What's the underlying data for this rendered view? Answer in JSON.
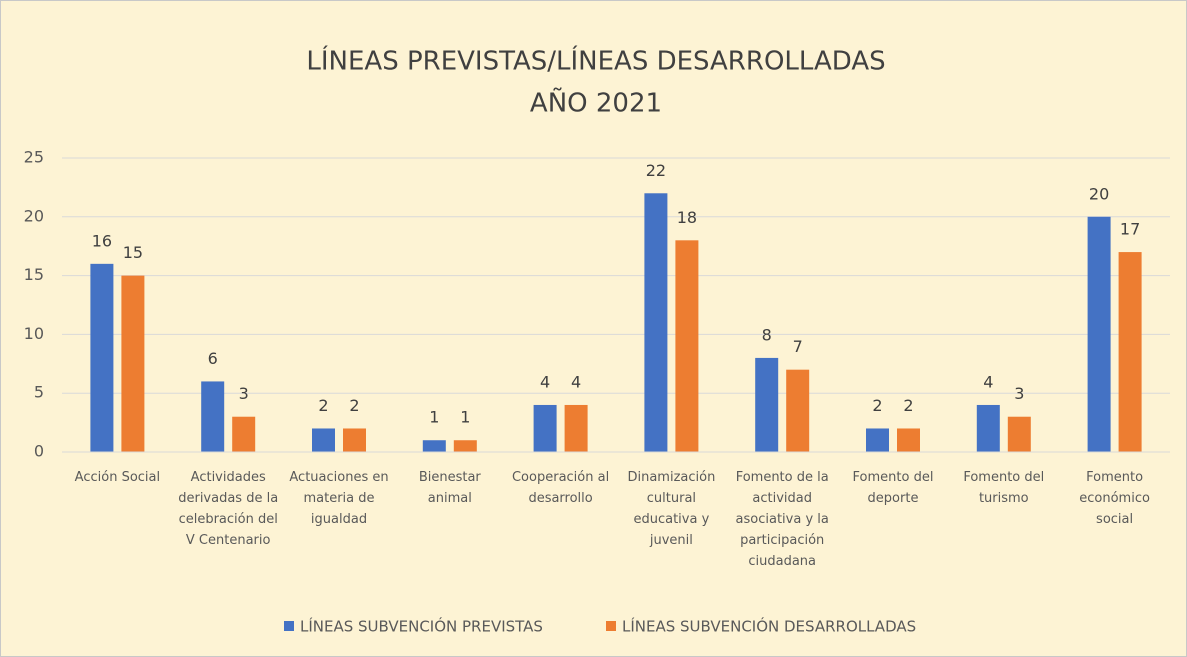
{
  "chart_data": {
    "type": "bar",
    "title": "LÍNEAS PREVISTAS/LÍNEAS DESARROLLADAS",
    "subtitle": "AÑO 2021",
    "categories": [
      "Acción Social",
      "Actividades derivadas de la celebración del V Centenario",
      "Actuaciones en materia de igualdad",
      "Bienestar animal",
      "Cooperación al desarrollo",
      "Dinamización cultural educativa y juvenil",
      "Fomento de la actividad asociativa y la participación ciudadana",
      "Fomento del deporte",
      "Fomento del turismo",
      "Fomento económico social"
    ],
    "series": [
      {
        "name": "LÍNEAS SUBVENCIÓN PREVISTAS",
        "color": "#4472c4",
        "values": [
          16,
          6,
          2,
          1,
          4,
          22,
          8,
          2,
          4,
          20
        ]
      },
      {
        "name": "LÍNEAS SUBVENCIÓN DESARROLLADAS",
        "color": "#ed7d31",
        "values": [
          15,
          3,
          2,
          1,
          4,
          18,
          7,
          2,
          3,
          17
        ]
      }
    ],
    "ylim": [
      0,
      25
    ],
    "yticks": [
      0,
      5,
      10,
      15,
      20,
      25
    ],
    "grid": true,
    "legend": "bottom"
  }
}
